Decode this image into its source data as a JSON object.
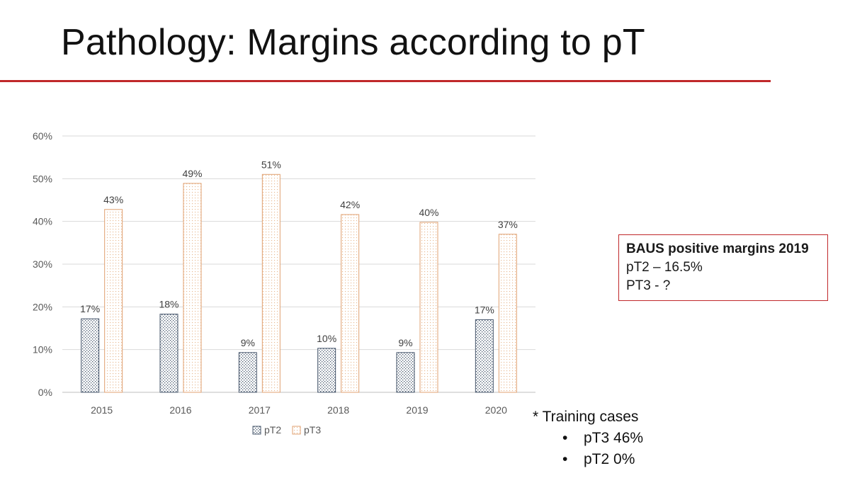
{
  "slide": {
    "title": "Pathology: Margins according to pT"
  },
  "callout": {
    "title": "BAUS positive margins 2019",
    "lines": [
      "pT2 – 16.5%",
      "PT3 - ?"
    ]
  },
  "notes": {
    "heading": "* Training cases",
    "bullets": [
      "pT3 46%",
      "pT2 0%"
    ]
  },
  "chart_data": {
    "type": "bar",
    "categories": [
      "2015",
      "2016",
      "2017",
      "2018",
      "2019",
      "2020"
    ],
    "series": [
      {
        "name": "pT2",
        "values": [
          17.2,
          18.3,
          9.3,
          10.3,
          9.3,
          17.0
        ],
        "labels": [
          "17%",
          "18%",
          "9%",
          "10%",
          "9%",
          "17%"
        ],
        "color": "#44546a",
        "pattern": "crosshatch-dots"
      },
      {
        "name": "pT3",
        "values": [
          42.8,
          48.9,
          51.0,
          41.6,
          39.8,
          37.0
        ],
        "labels": [
          "43%",
          "49%",
          "51%",
          "42%",
          "40%",
          "37%"
        ],
        "color": "#e0a070",
        "pattern": "fine-dots"
      }
    ],
    "yticks": [
      "0%",
      "10%",
      "20%",
      "30%",
      "40%",
      "50%",
      "60%"
    ],
    "ylim": [
      0,
      60
    ],
    "grid": true,
    "legend": "bottom-center",
    "xlabel": "",
    "ylabel": ""
  }
}
